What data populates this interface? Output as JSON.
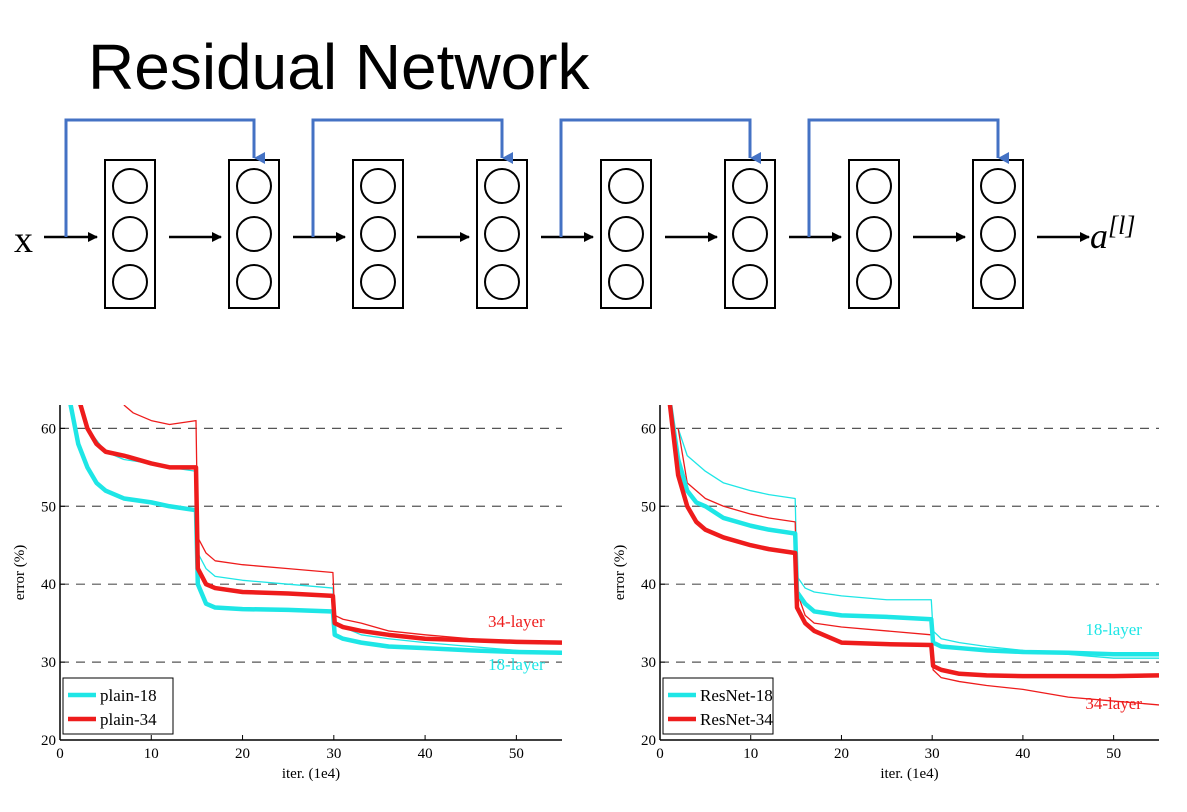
{
  "slide": {
    "title": "Residual Network"
  },
  "network": {
    "input_label": "x",
    "output_label_base": "a",
    "output_label_superscript": "[l]",
    "layer_count": 8,
    "neurons_per_layer": 3,
    "skip_connections": [
      [
        0,
        1
      ],
      [
        2,
        3
      ],
      [
        4,
        5
      ],
      [
        6,
        7
      ]
    ],
    "skip_color": "#4472c4",
    "arrow_color": "#000000"
  },
  "colors": {
    "cyan": "#1ee6e6",
    "red": "#ee1c1c",
    "axis": "#000000",
    "grid": "#555555"
  },
  "chart_data": [
    {
      "type": "line",
      "xlabel": "iter. (1e4)",
      "ylabel": "error (%)",
      "xlim": [
        0,
        55
      ],
      "ylim": [
        20,
        63
      ],
      "xticks": [
        "0",
        "10",
        "20",
        "30",
        "40",
        "50"
      ],
      "yticks": [
        "20",
        "30",
        "40",
        "50",
        "60"
      ],
      "grid": "dashed horizontal",
      "legend_position": "bottom-left",
      "annotations": [
        {
          "text": "34-layer",
          "x": 50,
          "y": 34.5,
          "color": "red"
        },
        {
          "text": "18-layer",
          "x": 50,
          "y": 29.0,
          "color": "cyan"
        }
      ],
      "series": [
        {
          "name": "plain-18",
          "color": "cyan",
          "style": "thick",
          "legend": true,
          "x": [
            1,
            2,
            3,
            4,
            5,
            7,
            10,
            12,
            14.9,
            15.1,
            16,
            17,
            20,
            25,
            29.9,
            30.1,
            31,
            33,
            36,
            40,
            45,
            50,
            55
          ],
          "y": [
            64,
            58,
            55,
            53,
            52,
            51,
            50.5,
            50,
            49.5,
            40,
            37.5,
            37,
            36.8,
            36.7,
            36.5,
            33.5,
            33,
            32.5,
            32,
            31.8,
            31.5,
            31.3,
            31.2
          ]
        },
        {
          "name": "plain-34",
          "color": "red",
          "style": "thick",
          "legend": true,
          "x": [
            2,
            3,
            4,
            5,
            7,
            10,
            12,
            14.9,
            15.1,
            16,
            17,
            20,
            25,
            29.9,
            30.1,
            31,
            33,
            36,
            40,
            45,
            50,
            55
          ],
          "y": [
            64,
            60,
            58,
            57,
            56.5,
            55.5,
            55,
            55,
            42,
            40,
            39.5,
            39,
            38.8,
            38.5,
            35,
            34.5,
            34,
            33.5,
            33,
            32.8,
            32.6,
            32.5
          ]
        },
        {
          "name": "plain-18 (train)",
          "color": "cyan",
          "style": "thin",
          "legend": false,
          "x": [
            3,
            5,
            7,
            10,
            12,
            14.9,
            15.1,
            16,
            17,
            20,
            25,
            29.9,
            30.1,
            31,
            33,
            36,
            40,
            45,
            50,
            55
          ],
          "y": [
            60,
            57,
            56,
            55.5,
            55,
            54.5,
            44,
            42,
            41,
            40.5,
            40,
            39.5,
            35,
            34.5,
            33.5,
            33,
            32.5,
            32,
            31.5,
            31
          ]
        },
        {
          "name": "plain-34 (train)",
          "color": "red",
          "style": "thin",
          "legend": false,
          "x": [
            7,
            8,
            10,
            12,
            14.9,
            15.1,
            16,
            17,
            20,
            25,
            29.9,
            30.1,
            31,
            33,
            36,
            40,
            45,
            50,
            55
          ],
          "y": [
            63,
            62,
            61,
            60.5,
            61,
            46,
            44,
            43,
            42.5,
            42,
            41.5,
            36,
            35.5,
            35,
            34,
            33.5,
            33,
            32.5,
            32.5
          ]
        }
      ],
      "legend_entries": [
        "plain-18",
        "plain-34"
      ]
    },
    {
      "type": "line",
      "xlabel": "iter. (1e4)",
      "ylabel": "error (%)",
      "xlim": [
        0,
        55
      ],
      "ylim": [
        20,
        63
      ],
      "xticks": [
        "0",
        "10",
        "20",
        "30",
        "40",
        "50"
      ],
      "yticks": [
        "20",
        "30",
        "40",
        "50",
        "60"
      ],
      "grid": "dashed horizontal",
      "legend_position": "bottom-left",
      "annotations": [
        {
          "text": "18-layer",
          "x": 50,
          "y": 33.5,
          "color": "cyan"
        },
        {
          "text": "34-layer",
          "x": 50,
          "y": 24.0,
          "color": "red"
        }
      ],
      "series": [
        {
          "name": "ResNet-18",
          "color": "cyan",
          "style": "thick",
          "legend": true,
          "x": [
            1,
            2,
            3,
            4,
            5,
            7,
            10,
            12,
            14.9,
            15.1,
            16,
            17,
            20,
            25,
            29.9,
            30.1,
            31,
            33,
            36,
            40,
            45,
            50,
            55
          ],
          "y": [
            64,
            56,
            52,
            50.5,
            50,
            48.5,
            47.5,
            47,
            46.5,
            39,
            37.5,
            36.5,
            36,
            35.8,
            35.5,
            32.5,
            32,
            31.8,
            31.5,
            31.3,
            31.2,
            31,
            31
          ]
        },
        {
          "name": "ResNet-34",
          "color": "red",
          "style": "thick",
          "legend": true,
          "x": [
            1,
            2,
            3,
            4,
            5,
            7,
            10,
            12,
            14.9,
            15.1,
            16,
            17,
            20,
            25,
            29.9,
            30.1,
            31,
            33,
            36,
            40,
            45,
            50,
            55
          ],
          "y": [
            64,
            54,
            50,
            48,
            47,
            46,
            45,
            44.5,
            44,
            37,
            35,
            34,
            32.5,
            32.3,
            32.2,
            29.5,
            29,
            28.5,
            28.3,
            28.2,
            28.2,
            28.2,
            28.3
          ]
        },
        {
          "name": "ResNet-18 (train)",
          "color": "cyan",
          "style": "thin",
          "legend": false,
          "x": [
            2,
            3,
            5,
            7,
            10,
            12,
            14.9,
            15.1,
            16,
            17,
            20,
            25,
            29.9,
            30.1,
            31,
            33,
            36,
            40,
            45,
            50,
            55
          ],
          "y": [
            60,
            56.5,
            54.5,
            53,
            52,
            51.5,
            51,
            41,
            39.5,
            39,
            38.5,
            38,
            38,
            34,
            33,
            32.5,
            32,
            31.5,
            31,
            30.5,
            30.5
          ]
        },
        {
          "name": "ResNet-34 (train)",
          "color": "red",
          "style": "thin",
          "legend": false,
          "x": [
            2,
            3,
            5,
            7,
            10,
            12,
            14.9,
            15.1,
            16,
            17,
            20,
            25,
            29.9,
            30.1,
            31,
            33,
            36,
            40,
            45,
            50,
            55
          ],
          "y": [
            60,
            53,
            51,
            50,
            49,
            48.5,
            48,
            39,
            36,
            35,
            34.5,
            34,
            33.5,
            29,
            28,
            27.5,
            27,
            26.5,
            25.5,
            25,
            24.5
          ]
        }
      ],
      "legend_entries": [
        "ResNet-18",
        "ResNet-34"
      ]
    }
  ]
}
